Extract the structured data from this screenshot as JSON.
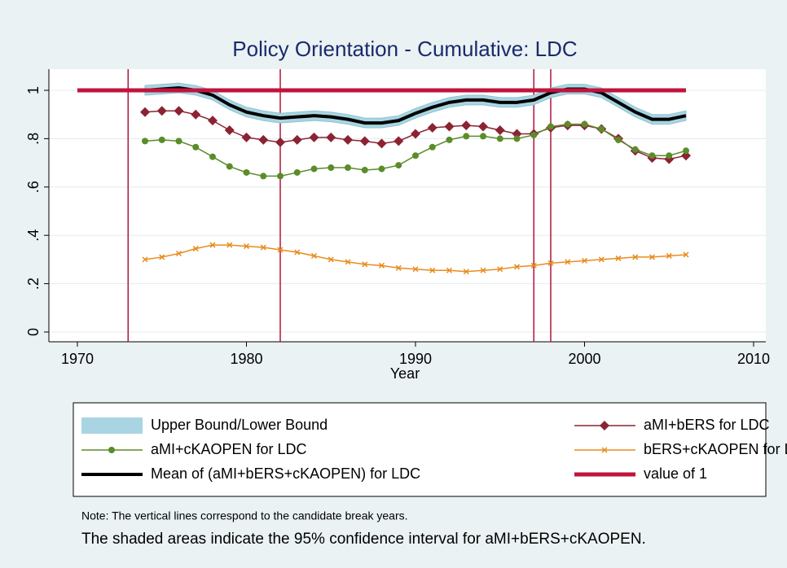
{
  "chart_data": {
    "type": "line",
    "title": "Policy Orientation - Cumulative: LDC",
    "xlabel": "Year",
    "x": [
      1974,
      1975,
      1976,
      1977,
      1978,
      1979,
      1980,
      1981,
      1982,
      1983,
      1984,
      1985,
      1986,
      1987,
      1988,
      1989,
      1990,
      1991,
      1992,
      1993,
      1994,
      1995,
      1996,
      1997,
      1998,
      1999,
      2000,
      2001,
      2002,
      2003,
      2004,
      2005,
      2006
    ],
    "xlim": [
      1970,
      2010
    ],
    "xticks": [
      1970,
      1980,
      1990,
      2000,
      2010
    ],
    "ylim": [
      0,
      1.07
    ],
    "yticks": [
      0,
      {
        "value": 0.2,
        "label": ".2"
      },
      {
        "value": 0.4,
        "label": ".4"
      },
      {
        "value": 0.6,
        "label": ".6"
      },
      {
        "value": 0.8,
        "label": ".8"
      },
      1
    ],
    "grid": true,
    "vlines": [
      1973,
      1982,
      1997,
      1998
    ],
    "vline_color": "#b0163a",
    "series": [
      {
        "name": "Upper Bound/Lower Bound",
        "kind": "band",
        "color": "#a9d5e2",
        "upper": [
          1.02,
          1.025,
          1.03,
          1.02,
          1.0,
          0.96,
          0.93,
          0.915,
          0.905,
          0.91,
          0.915,
          0.91,
          0.9,
          0.885,
          0.885,
          0.895,
          0.925,
          0.95,
          0.97,
          0.98,
          0.98,
          0.97,
          0.97,
          0.98,
          1.01,
          1.025,
          1.025,
          1.01,
          0.97,
          0.93,
          0.9,
          0.9,
          0.915
        ],
        "values": [
          0.98,
          0.985,
          0.99,
          0.98,
          0.96,
          0.92,
          0.89,
          0.875,
          0.865,
          0.87,
          0.875,
          0.87,
          0.86,
          0.845,
          0.845,
          0.855,
          0.885,
          0.91,
          0.93,
          0.94,
          0.94,
          0.93,
          0.93,
          0.94,
          0.97,
          0.985,
          0.985,
          0.97,
          0.93,
          0.89,
          0.86,
          0.86,
          0.875
        ]
      },
      {
        "name": "aMI+bERS for LDC",
        "marker": "diamond",
        "color": "#8b2332",
        "values": [
          0.91,
          0.915,
          0.915,
          0.9,
          0.875,
          0.835,
          0.805,
          0.795,
          0.785,
          0.795,
          0.805,
          0.805,
          0.795,
          0.79,
          0.78,
          0.79,
          0.82,
          0.845,
          0.85,
          0.855,
          0.85,
          0.835,
          0.82,
          0.82,
          0.845,
          0.855,
          0.855,
          0.84,
          0.8,
          0.75,
          0.72,
          0.715,
          0.73
        ]
      },
      {
        "name": "aMI+cKAOPEN for LDC",
        "marker": "circle",
        "color": "#5b8c2a",
        "values": [
          0.79,
          0.795,
          0.79,
          0.765,
          0.725,
          0.685,
          0.66,
          0.645,
          0.645,
          0.66,
          0.675,
          0.68,
          0.68,
          0.67,
          0.675,
          0.69,
          0.73,
          0.765,
          0.795,
          0.81,
          0.81,
          0.8,
          0.8,
          0.815,
          0.85,
          0.86,
          0.86,
          0.84,
          0.795,
          0.755,
          0.73,
          0.73,
          0.75
        ]
      },
      {
        "name": "bERS+cKAOPEN for LDC",
        "marker": "x",
        "color": "#e88c1e",
        "values": [
          0.3,
          0.31,
          0.325,
          0.345,
          0.36,
          0.36,
          0.355,
          0.35,
          0.34,
          0.33,
          0.315,
          0.3,
          0.29,
          0.28,
          0.275,
          0.265,
          0.26,
          0.255,
          0.255,
          0.25,
          0.255,
          0.26,
          0.27,
          0.275,
          0.285,
          0.29,
          0.295,
          0.3,
          0.305,
          0.31,
          0.31,
          0.315,
          0.32
        ]
      },
      {
        "name": "Mean of (aMI+bERS+cKAOPEN) for LDC",
        "color": "#000000",
        "width": 4,
        "values": [
          1.0,
          1.005,
          1.01,
          1.0,
          0.98,
          0.94,
          0.91,
          0.895,
          0.885,
          0.89,
          0.895,
          0.89,
          0.88,
          0.865,
          0.865,
          0.875,
          0.905,
          0.93,
          0.95,
          0.96,
          0.96,
          0.95,
          0.95,
          0.96,
          0.99,
          1.005,
          1.005,
          0.99,
          0.95,
          0.91,
          0.88,
          0.88,
          0.895
        ]
      },
      {
        "name": "value of 1",
        "color": "#c0143c",
        "width": 5,
        "x": [
          1970,
          2006
        ],
        "values": [
          1,
          1
        ]
      }
    ],
    "notes": [
      "Note: The vertical lines correspond to the candidate break years.",
      "The shaded areas indicate the 95% confidence interval for aMI+bERS+cKAOPEN."
    ]
  }
}
